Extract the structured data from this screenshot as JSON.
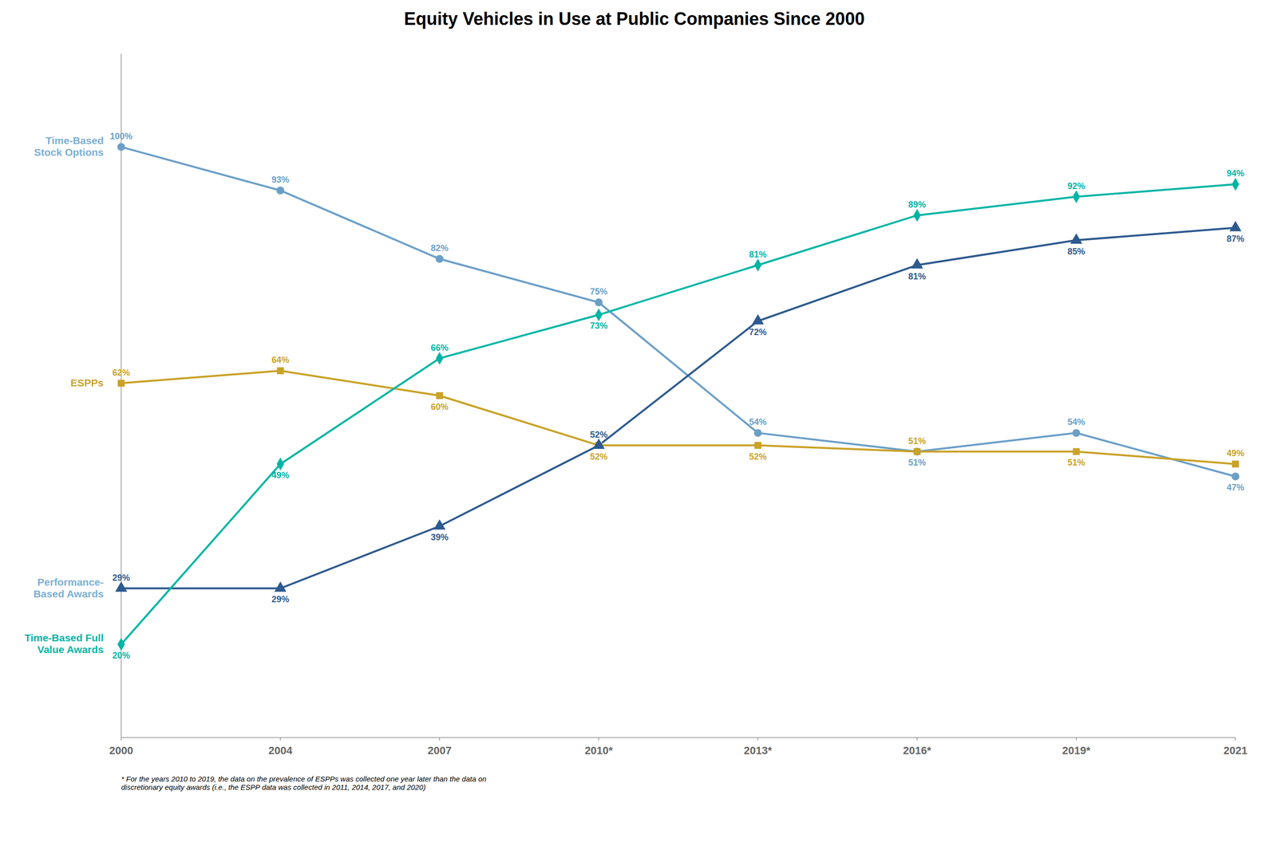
{
  "chart_data": {
    "type": "line",
    "title": "Equity Vehicles in Use at Public Companies Since 2000",
    "categories": [
      "2000",
      "2004",
      "2007",
      "2010*",
      "2013*",
      "2016*",
      "2019*",
      "2021"
    ],
    "series": [
      {
        "name": "Time-Based Stock Options",
        "color": "#6b9fc8",
        "marker": "circle",
        "values": [
          100,
          93,
          82,
          75,
          54,
          51,
          54,
          47
        ],
        "value_labels": [
          "100%",
          "93%",
          "82%",
          "75%",
          "54%",
          "51%",
          "54%",
          "47%"
        ]
      },
      {
        "name": "ESPPs",
        "color": "#c9a227",
        "marker": "square",
        "values": [
          62,
          64,
          60,
          52,
          52,
          51,
          51,
          49
        ],
        "value_labels": [
          "62%",
          "64%",
          "60%",
          "52%",
          "52%",
          "51%",
          "51%",
          "49%"
        ]
      },
      {
        "name": "Performance-Based Awards",
        "color": "#2d5a8e",
        "marker": "triangle",
        "values": [
          29,
          29,
          39,
          52,
          72,
          81,
          85,
          87
        ],
        "value_labels": [
          "29%",
          "29%",
          "39%",
          "52%",
          "72%",
          "81%",
          "85%",
          "87%"
        ]
      },
      {
        "name": "Time-Based Full Value Awards",
        "color": "#00b5a5",
        "marker": "diamond",
        "values": [
          20,
          49,
          66,
          73,
          81,
          89,
          92,
          94
        ],
        "value_labels": [
          "20%",
          "49%",
          "66%",
          "73%",
          "81%",
          "89%",
          "92%",
          "94%"
        ]
      }
    ],
    "annotations": [
      {
        "text": "Time-Based\nStock Options",
        "color": "#7aafd4"
      },
      {
        "text": "ESPPs",
        "color": "#c9a227"
      },
      {
        "text": "Performance-\nBased Awards",
        "color": "#7aafd4"
      },
      {
        "text": "Time-Based Full\nValue Awards",
        "color": "#00b5a5"
      }
    ],
    "footnote": [
      "* For the years 2010 to 2019, the data on the prevalence of ESPPs was collected one year later than the data on",
      "discretionary equity awards (i.e., the ESPP data was collected in 2011, 2014, 2017, and 2020)"
    ],
    "ylim": [
      5,
      115
    ],
    "grid": false,
    "data_labels": true,
    "tick_labels": "x"
  }
}
